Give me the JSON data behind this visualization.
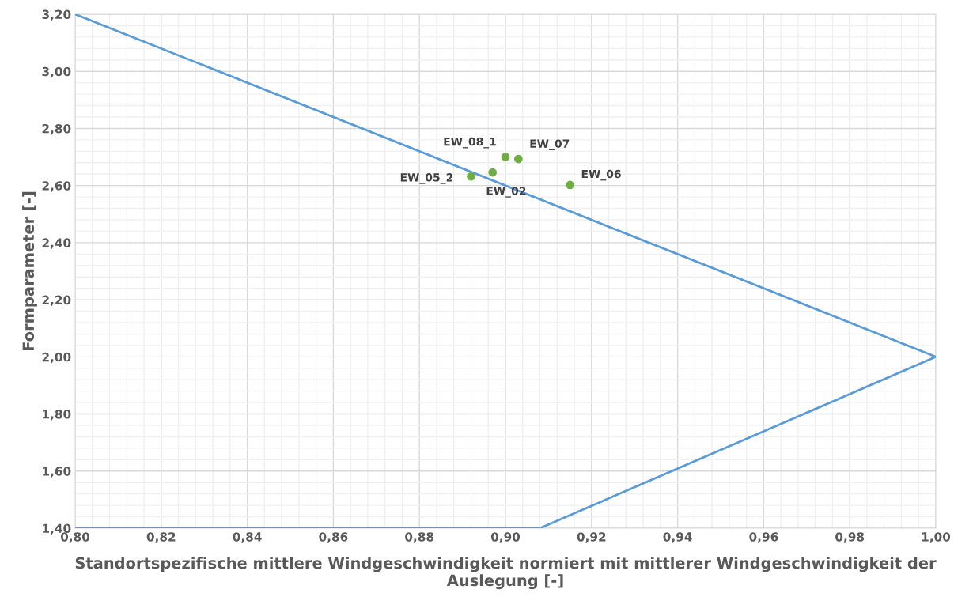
{
  "chart_data": {
    "type": "scatter",
    "xlabel": "Standortspezifische mittlere Windgeschwindigkeit normiert mit mittlerer Windgeschwindigkeit der Auslegung [-]",
    "ylabel": "Formparameter [-]",
    "series": [
      {
        "type": "line",
        "marker": "none",
        "color": "#5b9bd5",
        "x": [
          0.8,
          0.908,
          1.0,
          0.8
        ],
        "values": [
          1.4,
          1.4,
          2.0,
          3.2
        ]
      },
      {
        "marker": "circle",
        "color": "#70ad47",
        "x": [
          0.9,
          0.903,
          0.897,
          0.892,
          0.915
        ],
        "values": [
          2.7,
          2.693,
          2.646,
          2.632,
          2.602
        ]
      }
    ],
    "annotations": [
      {
        "text": "EW_08_1",
        "x": 0.9,
        "y": 2.7
      },
      {
        "text": "EW_07",
        "x": 0.903,
        "y": 2.693
      },
      {
        "text": "EW_02",
        "x": 0.897,
        "y": 2.646
      },
      {
        "text": "EW_05_2",
        "x": 0.892,
        "y": 2.632
      },
      {
        "text": "EW_06",
        "x": 0.915,
        "y": 2.602
      }
    ],
    "xlim": [
      0.8,
      1.0
    ],
    "ylim": [
      1.4,
      3.2
    ],
    "xticks": [
      {
        "value": 0.8,
        "label": "0,80"
      },
      {
        "value": 0.82,
        "label": "0,82"
      },
      {
        "value": 0.84,
        "label": "0,84"
      },
      {
        "value": 0.86,
        "label": "0,86"
      },
      {
        "value": 0.88,
        "label": "0,88"
      },
      {
        "value": 0.9,
        "label": "0,90"
      },
      {
        "value": 0.92,
        "label": "0,92"
      },
      {
        "value": 0.94,
        "label": "0,94"
      },
      {
        "value": 0.96,
        "label": "0,96"
      },
      {
        "value": 0.98,
        "label": "0,98"
      },
      {
        "value": 1.0,
        "label": "1,00"
      }
    ],
    "yticks": [
      {
        "value": 1.4,
        "label": "1,40"
      },
      {
        "value": 1.6,
        "label": "1,60"
      },
      {
        "value": 1.8,
        "label": "1,80"
      },
      {
        "value": 2.0,
        "label": "2,00"
      },
      {
        "value": 2.2,
        "label": "2,20"
      },
      {
        "value": 2.4,
        "label": "2,40"
      },
      {
        "value": 2.6,
        "label": "2,60"
      },
      {
        "value": 2.8,
        "label": "2,80"
      },
      {
        "value": 3.0,
        "label": "3,00"
      },
      {
        "value": 3.2,
        "label": "3,20"
      }
    ],
    "grid": true,
    "legend": false
  }
}
